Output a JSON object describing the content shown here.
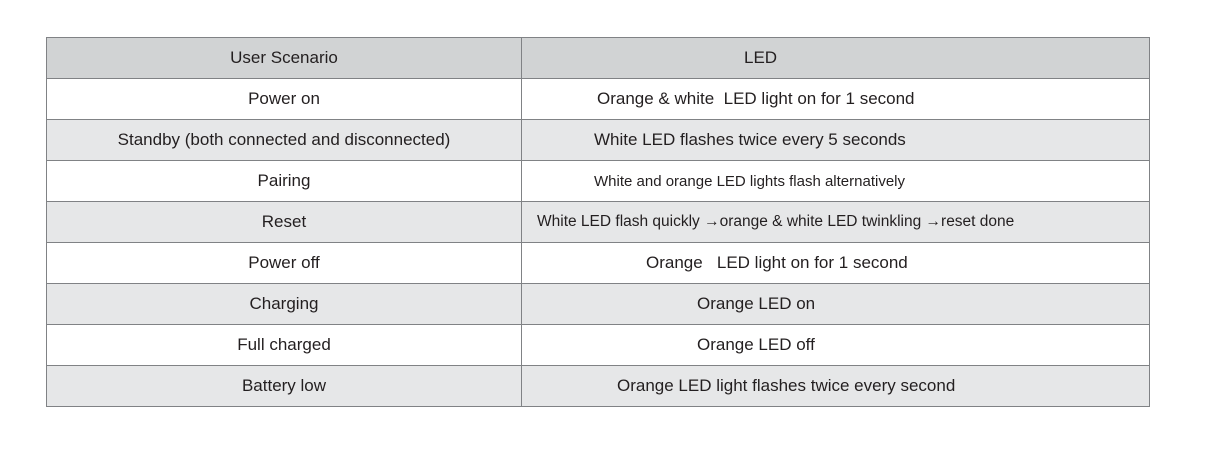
{
  "table": {
    "headers": [
      "User Scenario",
      "LED"
    ],
    "rows": [
      {
        "scenario": "Power on",
        "led": "Orange & white  LED light on for 1 second"
      },
      {
        "scenario": "Standby (both connected and disconnected)",
        "led": "White LED flashes twice every 5 seconds"
      },
      {
        "scenario": "Pairing",
        "led": "White and orange LED lights flash alternatively"
      },
      {
        "scenario": "Reset",
        "led": "White LED flash quickly →orange & white LED twinkling →reset done"
      },
      {
        "scenario": "Power off",
        "led": "Orange   LED light on for 1 second"
      },
      {
        "scenario": "Charging",
        "led": "Orange LED on"
      },
      {
        "scenario": "Full charged",
        "led": "Orange LED off"
      },
      {
        "scenario": "Battery low",
        "led": "Orange LED light flashes twice every second"
      }
    ]
  },
  "colors": {
    "header_bg": "#d1d3d4",
    "alt_row_bg": "#e6e7e8",
    "border": "#808285"
  }
}
